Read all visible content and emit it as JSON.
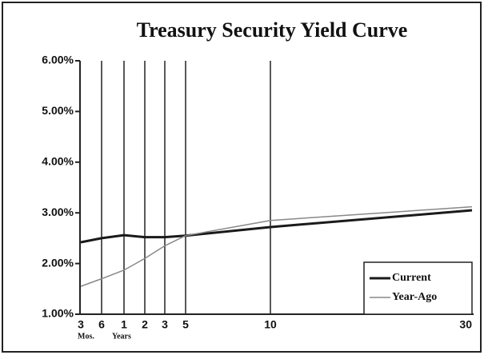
{
  "chart_data": {
    "type": "line",
    "title": "Treasury Security Yield Curve",
    "categories": [
      "3",
      "6",
      "1",
      "2",
      "3",
      "5",
      "10",
      "30"
    ],
    "x_sublabels": [
      "Mos.",
      "Years"
    ],
    "series": [
      {
        "name": "Current",
        "color": "#1a1a1a",
        "values": [
          2.42,
          2.5,
          2.56,
          2.52,
          2.52,
          2.55,
          2.72,
          3.05
        ]
      },
      {
        "name": "Year-Ago",
        "color": "#888888",
        "values": [
          1.55,
          1.7,
          1.87,
          2.1,
          2.35,
          2.55,
          2.85,
          3.12
        ]
      }
    ],
    "ylim": [
      1,
      6
    ],
    "yticks": [
      {
        "value": 1,
        "label": "1.00%"
      },
      {
        "value": 2,
        "label": "2.00%"
      },
      {
        "value": 3,
        "label": "3.00%"
      },
      {
        "value": 4,
        "label": "4.00%"
      },
      {
        "value": 5,
        "label": "5.00%"
      },
      {
        "value": 6,
        "label": "6.00%"
      }
    ],
    "legend": "lower right"
  }
}
